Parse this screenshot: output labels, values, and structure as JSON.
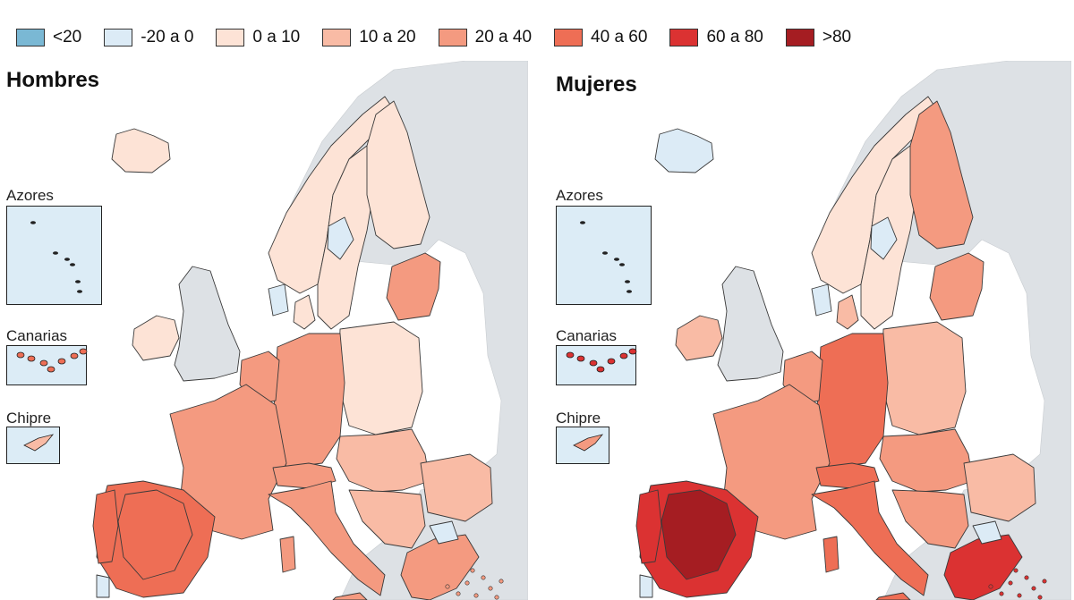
{
  "legend": {
    "items": [
      {
        "label": "<20",
        "color": "#7ab8d4"
      },
      {
        "label": "-20 a 0",
        "color": "#dcebf6"
      },
      {
        "label": "0 a 10",
        "color": "#fde3d6"
      },
      {
        "label": "10 a 20",
        "color": "#f9bba5"
      },
      {
        "label": "20 a 40",
        "color": "#f49a80"
      },
      {
        "label": "40 a 60",
        "color": "#ee6e55"
      },
      {
        "label": "60 a 80",
        "color": "#db3232"
      },
      {
        "label": ">80",
        "color": "#a51d22"
      }
    ]
  },
  "maps": [
    {
      "title": "Hombres",
      "insets": [
        "Azores",
        "Canarias",
        "Chipre"
      ],
      "region_classes": {
        "iceland": "0 a 10",
        "ireland": "0 a 10",
        "norway": "0 a 10",
        "sweden": "0 a 10",
        "finland": "0 a 10",
        "baltics": "20 a 40",
        "denmark": "0 a 10",
        "poland": "0 a 10",
        "germany": "20 a 40",
        "benelux": "20 a 40",
        "france": "20 a 40",
        "iberia": "40 a 60",
        "iberia_core": "40 a 60",
        "italy": "20 a 40",
        "alps": "20 a 40",
        "central_east": "10 a 20",
        "balkans": "10 a 20",
        "romania": "10 a 20",
        "greece": "20 a 40",
        "blue_spots": "-20 a 0"
      }
    },
    {
      "title": "Mujeres",
      "insets": [
        "Azores",
        "Canarias",
        "Chipre"
      ],
      "region_classes": {
        "iceland": "-20 a 0",
        "ireland": "10 a 20",
        "norway": "0 a 10",
        "sweden": "0 a 10",
        "finland": "20 a 40",
        "baltics": "20 a 40",
        "denmark": "10 a 20",
        "poland": "10 a 20",
        "germany": "40 a 60",
        "benelux": "20 a 40",
        "france": "20 a 40",
        "iberia": "60 a 80",
        "iberia_core": ">80",
        "italy": "40 a 60",
        "alps": "40 a 60",
        "central_east": "20 a 40",
        "balkans": "20 a 40",
        "romania": "10 a 20",
        "greece": "60 a 80",
        "blue_spots": "-20 a 0"
      }
    }
  ],
  "colors": {
    "sea": "#ffffff",
    "non_eu_land": "#dde1e5",
    "uk_land": "#dde1e5",
    "inset_sea": "#dcecf6"
  }
}
